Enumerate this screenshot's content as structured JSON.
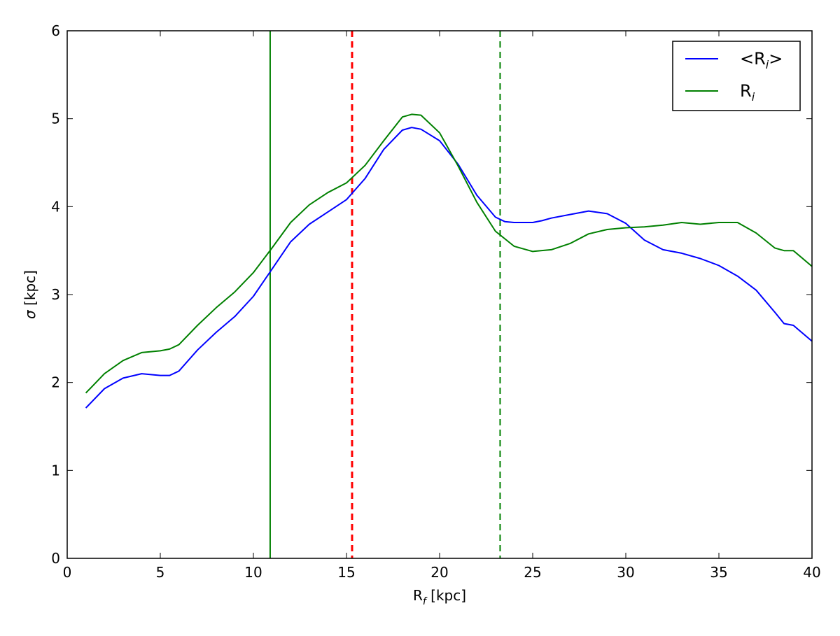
{
  "chart_data": {
    "type": "line",
    "title": "",
    "xlabel": {
      "base": "R",
      "sub": "f",
      "unit": " [kpc]"
    },
    "ylabel": {
      "symbol": "σ",
      "unit": " [kpc]"
    },
    "xlim": [
      0,
      40
    ],
    "ylim": [
      0,
      6
    ],
    "xticks": [
      0,
      5,
      10,
      15,
      20,
      25,
      30,
      35,
      40
    ],
    "yticks": [
      0,
      1,
      2,
      3,
      4,
      5,
      6
    ],
    "grid": false,
    "legend_position": "top-right",
    "series": [
      {
        "name": "<Ri>",
        "legend": {
          "pre": "<R",
          "sub": "i",
          "post": ">"
        },
        "color": "#0000ff",
        "x": [
          1,
          2,
          3,
          4,
          5,
          5.5,
          6,
          7,
          8,
          9,
          10,
          11,
          12,
          13,
          14,
          15,
          16,
          17,
          18,
          18.5,
          19,
          20,
          21,
          22,
          23,
          23.5,
          24,
          25,
          25.5,
          26,
          27,
          28,
          29,
          30,
          31,
          32,
          33,
          34,
          35,
          36,
          37,
          38,
          38.5,
          39,
          40
        ],
        "y": [
          1.71,
          1.93,
          2.05,
          2.1,
          2.08,
          2.08,
          2.13,
          2.37,
          2.57,
          2.75,
          2.98,
          3.29,
          3.6,
          3.8,
          3.94,
          4.08,
          4.32,
          4.65,
          4.87,
          4.9,
          4.88,
          4.75,
          4.48,
          4.13,
          3.88,
          3.83,
          3.82,
          3.82,
          3.84,
          3.87,
          3.91,
          3.95,
          3.92,
          3.81,
          3.62,
          3.51,
          3.47,
          3.41,
          3.33,
          3.21,
          3.05,
          2.8,
          2.67,
          2.65,
          2.47
        ]
      },
      {
        "name": "Ri",
        "legend": {
          "pre": "R",
          "sub": "i",
          "post": ""
        },
        "color": "#008000",
        "x": [
          1,
          2,
          3,
          4,
          5,
          5.5,
          6,
          7,
          8,
          9,
          10,
          11,
          12,
          13,
          14,
          15,
          16,
          17,
          18,
          18.5,
          19,
          20,
          21,
          22,
          23,
          24,
          25,
          26,
          27,
          28,
          29,
          30,
          31,
          32,
          33,
          34,
          35,
          36,
          37,
          38,
          38.5,
          39,
          40
        ],
        "y": [
          1.88,
          2.1,
          2.25,
          2.34,
          2.36,
          2.38,
          2.43,
          2.65,
          2.85,
          3.03,
          3.25,
          3.53,
          3.82,
          4.02,
          4.16,
          4.27,
          4.47,
          4.75,
          5.02,
          5.05,
          5.04,
          4.84,
          4.46,
          4.05,
          3.72,
          3.55,
          3.49,
          3.51,
          3.58,
          3.69,
          3.74,
          3.76,
          3.77,
          3.79,
          3.82,
          3.8,
          3.82,
          3.82,
          3.7,
          3.53,
          3.5,
          3.5,
          3.32
        ]
      }
    ],
    "vertical_lines": [
      {
        "x": 10.9,
        "color": "#008000",
        "style": "solid",
        "width": 2
      },
      {
        "x": 15.3,
        "color": "#ff0000",
        "style": "dashed",
        "width": 3
      },
      {
        "x": 23.25,
        "color": "#008000",
        "style": "dashed",
        "width": 2
      }
    ]
  }
}
